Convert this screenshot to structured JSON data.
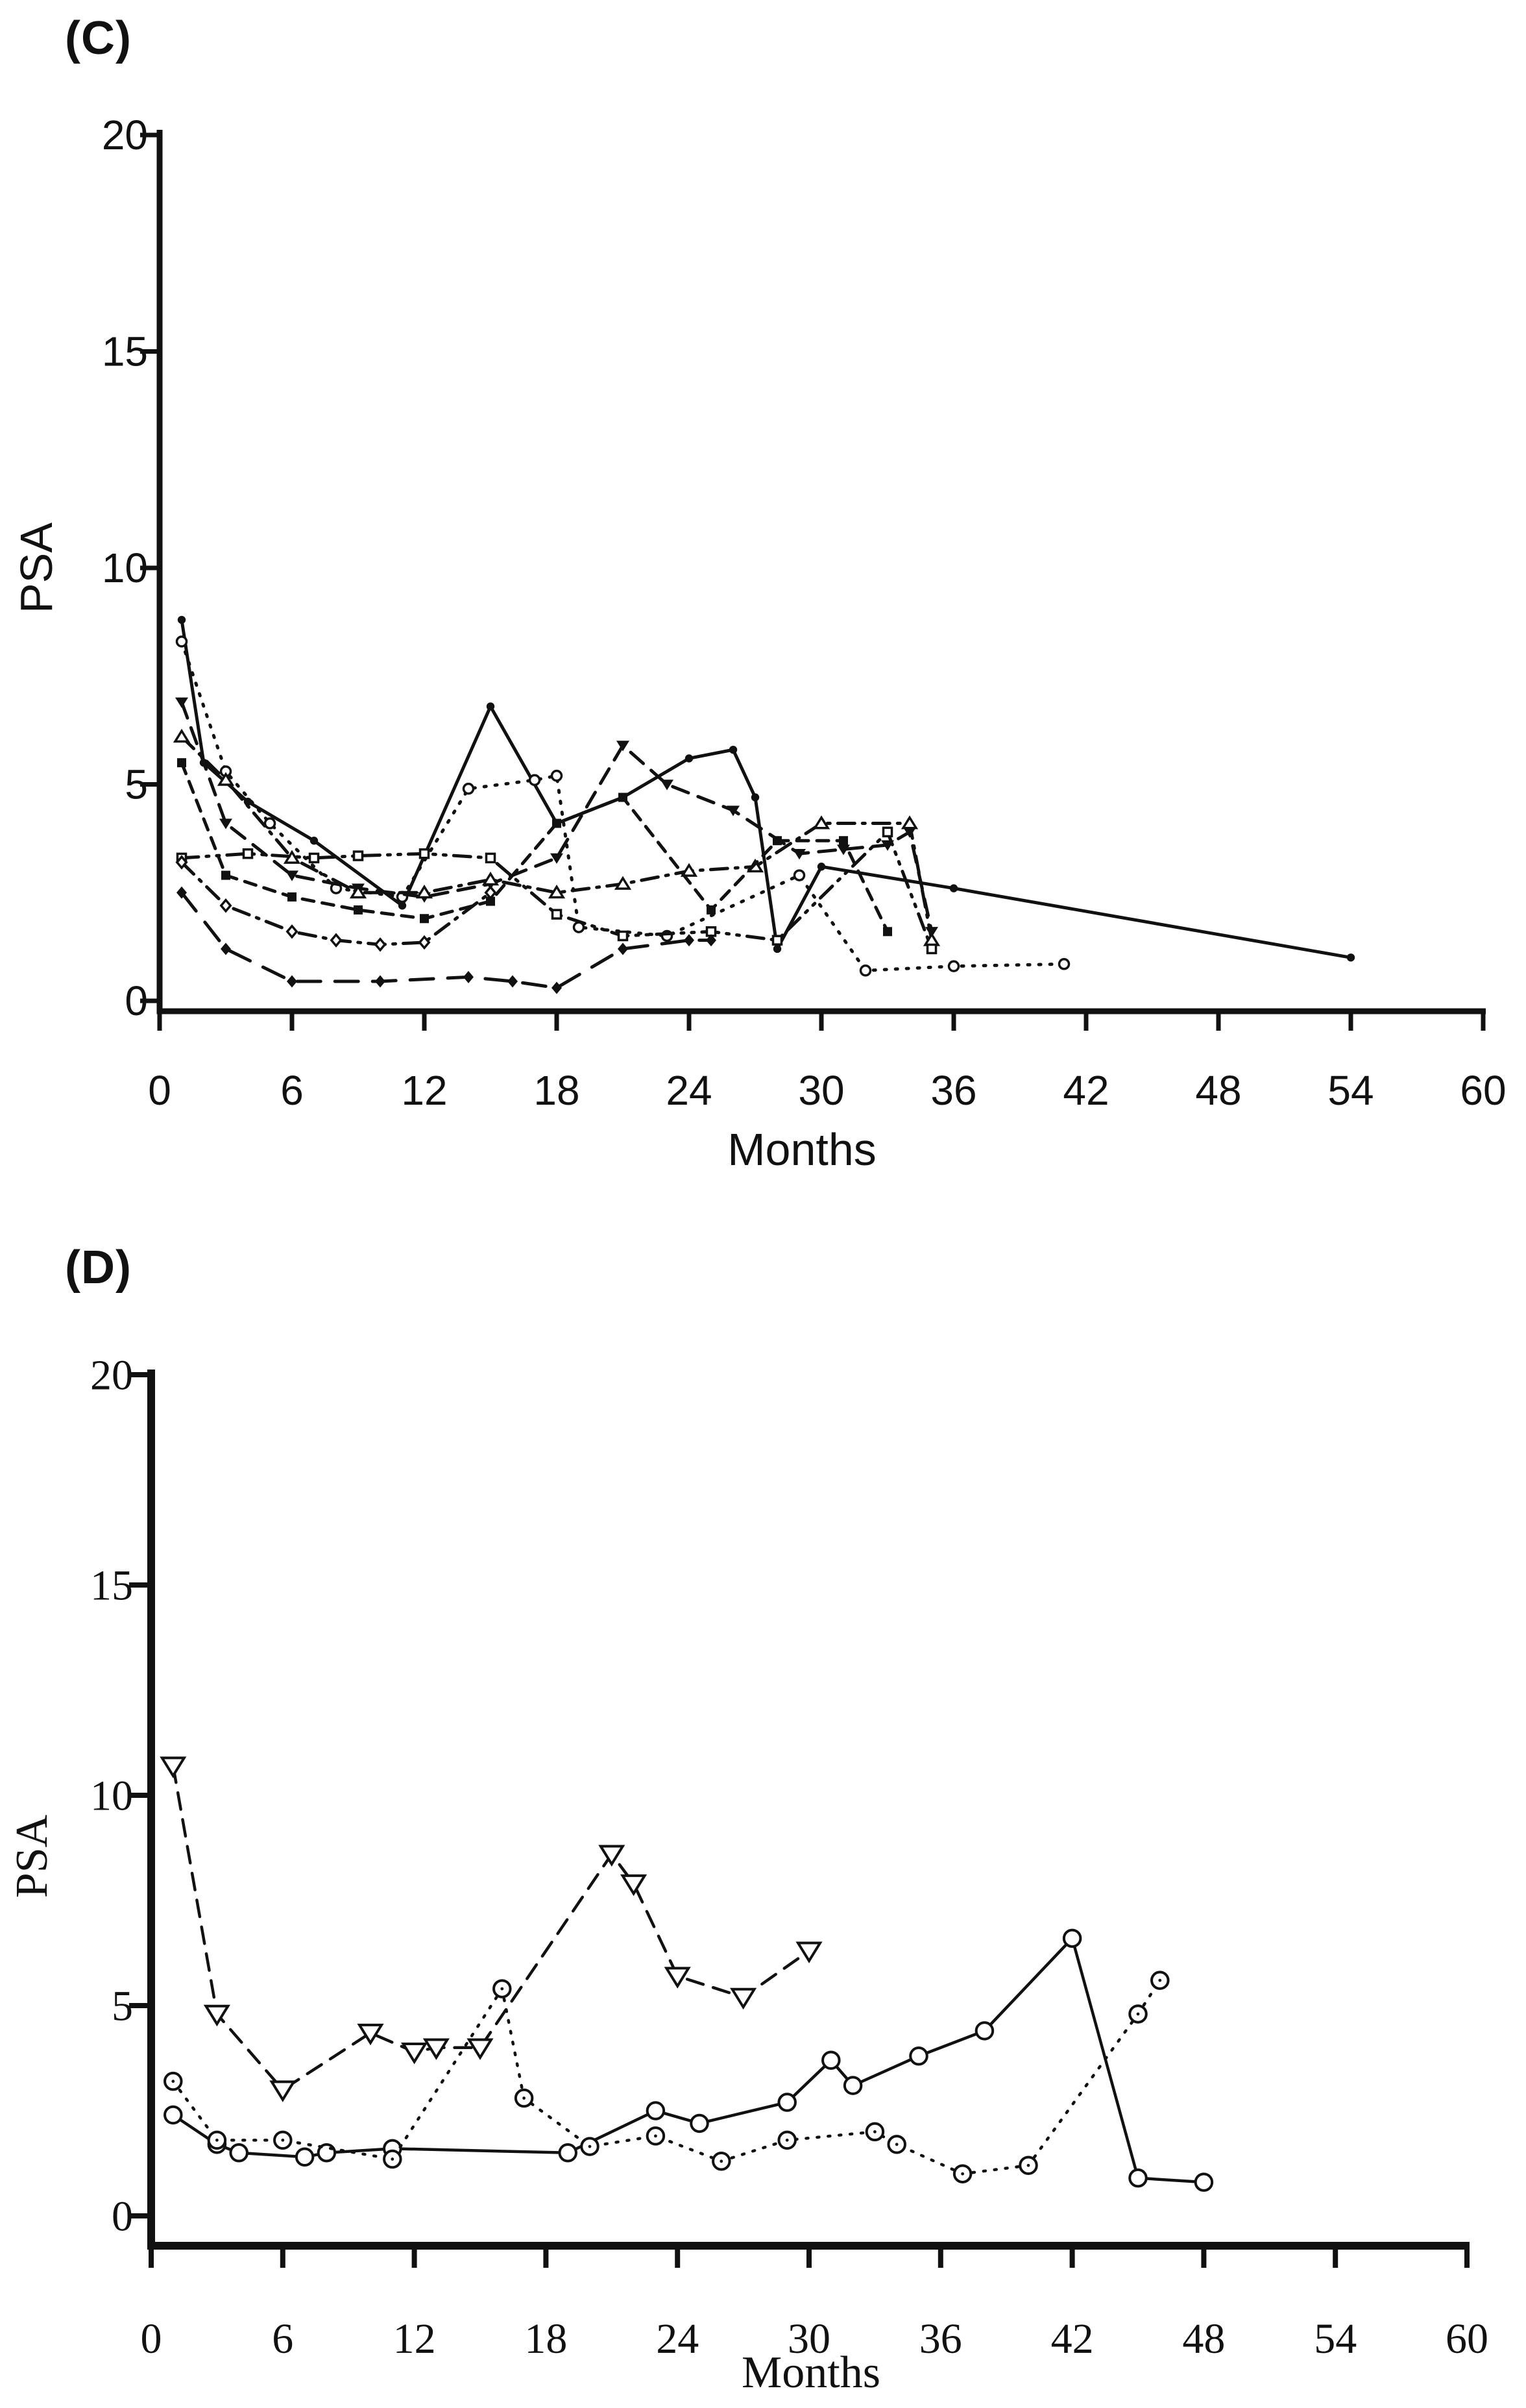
{
  "figure": {
    "background": "#ffffff",
    "ink_color": "#111111",
    "panel_c_label": "(C)",
    "panel_d_label": "(D)"
  },
  "chart_data": [
    {
      "id": "C",
      "type": "line",
      "title": "(C)",
      "xlabel": "Months",
      "ylabel": "PSA",
      "xlim": [
        0,
        60
      ],
      "ylim": [
        0,
        20
      ],
      "xticks": [
        0,
        6,
        12,
        18,
        24,
        30,
        36,
        42,
        48,
        54,
        60
      ],
      "yticks": [
        0,
        5,
        10,
        15,
        20
      ],
      "grid": false,
      "legend": false,
      "font_style": "sans",
      "series": [
        {
          "name": "patient-c1",
          "marker": "circle-filled",
          "line": "solid",
          "points": [
            [
              1,
              8.8
            ],
            [
              2,
              5.5
            ],
            [
              4,
              4.6
            ],
            [
              7,
              3.7
            ],
            [
              11,
              2.2
            ],
            [
              15,
              6.8
            ],
            [
              18,
              4.1
            ],
            [
              21,
              4.7
            ],
            [
              24,
              5.6
            ],
            [
              26,
              5.8
            ],
            [
              27,
              4.7
            ],
            [
              28,
              1.2
            ],
            [
              30,
              3.1
            ],
            [
              36,
              2.6
            ],
            [
              54,
              1.0
            ]
          ]
        },
        {
          "name": "patient-c2",
          "marker": "circle-open",
          "line": "dotted",
          "points": [
            [
              1,
              8.3
            ],
            [
              3,
              5.3
            ],
            [
              5,
              4.1
            ],
            [
              8,
              2.6
            ],
            [
              11,
              2.4
            ],
            [
              14,
              4.9
            ],
            [
              17,
              5.1
            ],
            [
              18,
              5.2
            ],
            [
              19,
              1.7
            ],
            [
              23,
              1.5
            ],
            [
              29,
              2.9
            ],
            [
              32,
              0.7
            ],
            [
              36,
              0.8
            ],
            [
              41,
              0.85
            ]
          ]
        },
        {
          "name": "patient-c3",
          "marker": "triangle-down-filled",
          "line": "dashed",
          "points": [
            [
              1,
              6.9
            ],
            [
              3,
              4.1
            ],
            [
              6,
              2.9
            ],
            [
              9,
              2.6
            ],
            [
              12,
              2.4
            ],
            [
              15,
              2.7
            ],
            [
              18,
              3.3
            ],
            [
              21,
              5.9
            ],
            [
              23,
              5.0
            ],
            [
              26,
              4.4
            ],
            [
              29,
              3.4
            ],
            [
              31,
              3.5
            ],
            [
              33,
              3.6
            ],
            [
              34,
              3.9
            ],
            [
              35,
              1.6
            ]
          ]
        },
        {
          "name": "patient-c4",
          "marker": "triangle-up-open",
          "line": "dashdot",
          "points": [
            [
              1,
              6.1
            ],
            [
              3,
              5.1
            ],
            [
              6,
              3.3
            ],
            [
              9,
              2.5
            ],
            [
              12,
              2.5
            ],
            [
              15,
              2.8
            ],
            [
              18,
              2.5
            ],
            [
              21,
              2.7
            ],
            [
              24,
              3.0
            ],
            [
              27,
              3.1
            ],
            [
              30,
              4.1
            ],
            [
              34,
              4.1
            ],
            [
              35,
              1.4
            ]
          ]
        },
        {
          "name": "patient-c5",
          "marker": "square-filled",
          "line": "dashed2",
          "points": [
            [
              1,
              5.5
            ],
            [
              3,
              2.9
            ],
            [
              6,
              2.4
            ],
            [
              9,
              2.1
            ],
            [
              12,
              1.9
            ],
            [
              15,
              2.3
            ],
            [
              18,
              4.1
            ],
            [
              21,
              4.7
            ],
            [
              25,
              2.1
            ],
            [
              28,
              3.7
            ],
            [
              31,
              3.7
            ],
            [
              33,
              1.6
            ]
          ]
        },
        {
          "name": "patient-c6",
          "marker": "square-open",
          "line": "dashdotdot",
          "points": [
            [
              1,
              3.3
            ],
            [
              4,
              3.4
            ],
            [
              7,
              3.3
            ],
            [
              9,
              3.35
            ],
            [
              12,
              3.4
            ],
            [
              15,
              3.3
            ],
            [
              18,
              2.0
            ],
            [
              21,
              1.5
            ],
            [
              25,
              1.6
            ],
            [
              28,
              1.4
            ],
            [
              33,
              3.9
            ],
            [
              35,
              1.2
            ]
          ]
        },
        {
          "name": "patient-c7",
          "marker": "diamond-filled",
          "line": "longdash",
          "points": [
            [
              1,
              2.5
            ],
            [
              3,
              1.2
            ],
            [
              6,
              0.45
            ],
            [
              10,
              0.45
            ],
            [
              14,
              0.55
            ],
            [
              16,
              0.45
            ],
            [
              18,
              0.3
            ],
            [
              21,
              1.2
            ],
            [
              24,
              1.4
            ],
            [
              25,
              1.4
            ]
          ]
        },
        {
          "name": "patient-c8",
          "marker": "diamond-open",
          "line": "dashdot",
          "points": [
            [
              1,
              3.2
            ],
            [
              3,
              2.2
            ],
            [
              6,
              1.6
            ],
            [
              8,
              1.4
            ],
            [
              10,
              1.3
            ],
            [
              12,
              1.35
            ],
            [
              15,
              2.5
            ]
          ]
        }
      ]
    },
    {
      "id": "D",
      "type": "line",
      "title": "(D)",
      "xlabel": "Months",
      "ylabel": "PSA",
      "xlim": [
        0,
        60
      ],
      "ylim": [
        0,
        20
      ],
      "xticks": [
        0,
        6,
        12,
        18,
        24,
        30,
        36,
        42,
        48,
        54,
        60
      ],
      "yticks": [
        0,
        5,
        10,
        15,
        20
      ],
      "grid": false,
      "legend": false,
      "font_style": "serif",
      "series": [
        {
          "name": "patient-d1",
          "marker": "triangle-down-open",
          "line": "dashed",
          "points": [
            [
              1,
              10.7
            ],
            [
              3,
              4.8
            ],
            [
              6,
              3.0
            ],
            [
              10,
              4.35
            ],
            [
              12,
              3.9
            ],
            [
              13,
              4.0
            ],
            [
              15,
              4.0
            ],
            [
              21,
              8.6
            ],
            [
              22,
              7.9
            ],
            [
              24,
              5.7
            ],
            [
              27,
              5.2
            ],
            [
              30,
              6.3
            ]
          ]
        },
        {
          "name": "patient-d2",
          "marker": "circle-open",
          "line": "solid",
          "points": [
            [
              1,
              2.4
            ],
            [
              3,
              1.7
            ],
            [
              4,
              1.5
            ],
            [
              7,
              1.4
            ],
            [
              8,
              1.5
            ],
            [
              11,
              1.6
            ],
            [
              19,
              1.5
            ],
            [
              23,
              2.5
            ],
            [
              25,
              2.2
            ],
            [
              29,
              2.7
            ],
            [
              31,
              3.7
            ],
            [
              32,
              3.1
            ],
            [
              35,
              3.8
            ],
            [
              38,
              4.4
            ],
            [
              42,
              6.6
            ],
            [
              45,
              0.9
            ],
            [
              48,
              0.8
            ]
          ]
        },
        {
          "name": "patient-d3",
          "marker": "circle-dot",
          "line": "dotted",
          "points": [
            [
              1,
              3.2
            ],
            [
              3,
              1.8
            ],
            [
              6,
              1.8
            ],
            [
              11,
              1.35
            ],
            [
              16,
              5.4
            ],
            [
              17,
              2.8
            ],
            [
              20,
              1.65
            ],
            [
              23,
              1.9
            ],
            [
              26,
              1.3
            ],
            [
              29,
              1.8
            ],
            [
              33,
              2.0
            ],
            [
              34,
              1.7
            ],
            [
              37,
              1.0
            ],
            [
              40,
              1.2
            ],
            [
              45,
              4.8
            ],
            [
              46,
              5.6
            ]
          ]
        }
      ]
    }
  ]
}
